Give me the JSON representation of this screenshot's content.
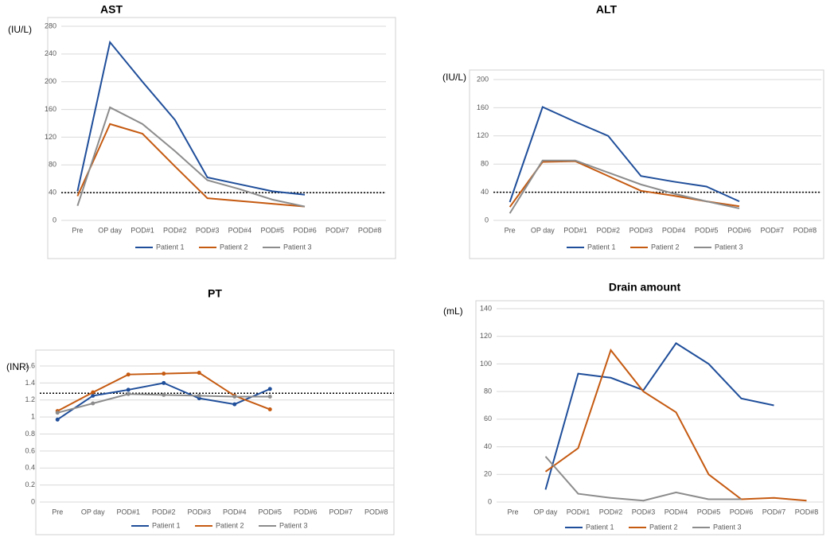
{
  "chart_data": [
    {
      "type": "line",
      "title": "AST",
      "y_label": "(IU/L)",
      "categories": [
        "Pre",
        "OP day",
        "POD#1",
        "POD#2",
        "POD#3",
        "POD#4",
        "POD#5",
        "POD#6",
        "POD#7",
        "POD#8"
      ],
      "series": [
        {
          "name": "Patient 1",
          "color": "#1f4e9a",
          "values": [
            42,
            257,
            200,
            145,
            62,
            52,
            42,
            37,
            null,
            null
          ]
        },
        {
          "name": "Patient 2",
          "color": "#c55a11",
          "values": [
            35,
            139,
            125,
            78,
            32,
            28,
            24,
            20,
            null,
            null
          ]
        },
        {
          "name": "Patient 3",
          "color": "#8c8c8c",
          "values": [
            21,
            163,
            139,
            100,
            58,
            45,
            30,
            20,
            null,
            null
          ]
        }
      ],
      "ylim": [
        0,
        280
      ],
      "yticks": [
        0,
        40,
        80,
        120,
        160,
        200,
        240,
        280
      ],
      "grid": true,
      "reference_line": 40,
      "markers": false,
      "legend": "bottom"
    },
    {
      "type": "line",
      "title": "ALT",
      "y_label": "(IU/L)",
      "categories": [
        "Pre",
        "OP day",
        "POD#1",
        "POD#2",
        "POD#3",
        "POD#4",
        "POD#5",
        "POD#6",
        "POD#7",
        "POD#8"
      ],
      "series": [
        {
          "name": "Patient 1",
          "color": "#1f4e9a",
          "values": [
            26,
            161,
            140,
            120,
            63,
            55,
            48,
            27,
            null,
            null
          ]
        },
        {
          "name": "Patient 2",
          "color": "#c55a11",
          "values": [
            19,
            83,
            84,
            63,
            42,
            35,
            27,
            20,
            null,
            null
          ]
        },
        {
          "name": "Patient 3",
          "color": "#8c8c8c",
          "values": [
            10,
            85,
            85,
            68,
            51,
            38,
            27,
            17,
            null,
            null
          ]
        }
      ],
      "ylim": [
        0,
        200
      ],
      "yticks": [
        0,
        40,
        80,
        120,
        160,
        200
      ],
      "grid": true,
      "reference_line": 40,
      "markers": false,
      "legend": "bottom"
    },
    {
      "type": "line",
      "title": "PT",
      "y_label": "(INR)",
      "categories": [
        "Pre",
        "OP day",
        "POD#1",
        "POD#2",
        "POD#3",
        "POD#4",
        "POD#5",
        "POD#6",
        "POD#7",
        "POD#8"
      ],
      "series": [
        {
          "name": "Patient 1",
          "color": "#1f4e9a",
          "values": [
            0.97,
            1.25,
            1.32,
            1.4,
            1.22,
            1.15,
            1.33,
            null,
            null,
            null
          ]
        },
        {
          "name": "Patient 2",
          "color": "#c55a11",
          "values": [
            1.07,
            1.29,
            1.5,
            1.51,
            1.52,
            1.25,
            1.09,
            null,
            null,
            null
          ]
        },
        {
          "name": "Patient 3",
          "color": "#8c8c8c",
          "values": [
            1.05,
            1.16,
            1.27,
            1.26,
            1.25,
            1.24,
            1.24,
            null,
            null,
            null
          ]
        }
      ],
      "ylim": [
        0,
        1.6
      ],
      "yticks": [
        0,
        0.2,
        0.4,
        0.6,
        0.8,
        1,
        1.2,
        1.4,
        1.6
      ],
      "grid": true,
      "reference_line": 1.28,
      "markers": true,
      "legend": "bottom"
    },
    {
      "type": "line",
      "title": "Drain amount",
      "y_label": "(mL)",
      "categories": [
        "Pre",
        "OP day",
        "POD#1",
        "POD#2",
        "POD#3",
        "POD#4",
        "POD#5",
        "POD#6",
        "POD#7",
        "POD#8"
      ],
      "series": [
        {
          "name": "Patient 1",
          "color": "#1f4e9a",
          "values": [
            null,
            9,
            93,
            90,
            81,
            115,
            100,
            75,
            70,
            null
          ]
        },
        {
          "name": "Patient 2",
          "color": "#c55a11",
          "values": [
            null,
            22,
            39,
            110,
            80,
            65,
            20,
            2,
            3,
            1
          ]
        },
        {
          "name": "Patient 3",
          "color": "#8c8c8c",
          "values": [
            null,
            33,
            6,
            3,
            1,
            7,
            2,
            2,
            null,
            null
          ]
        }
      ],
      "ylim": [
        0,
        140
      ],
      "yticks": [
        0,
        20,
        40,
        60,
        80,
        100,
        120,
        140
      ],
      "grid": true,
      "markers": false,
      "legend": "bottom"
    }
  ]
}
